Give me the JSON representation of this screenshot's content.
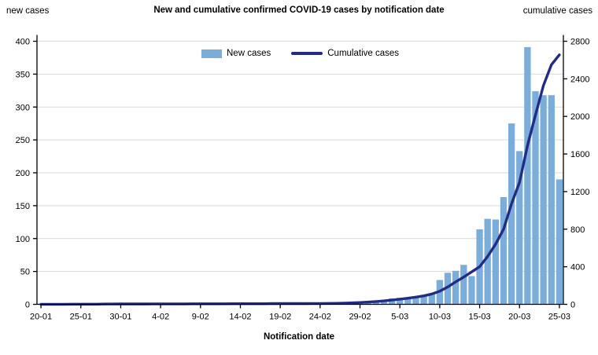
{
  "header": {
    "title": "New and cumulative confirmed COVID-19 cases by notification date",
    "left_axis_label": "new cases",
    "right_axis_label": "cumulative cases"
  },
  "legend": {
    "new_cases_label": "New cases",
    "cumulative_cases_label": "Cumulative cases"
  },
  "x_axis_title": "Notification date",
  "colors": {
    "bar": "#7badda",
    "line": "#232c85",
    "grid": "#d9d9d9",
    "axis": "#000000",
    "background": "#ffffff"
  },
  "chart_data": {
    "type": "bar",
    "title": "New and cumulative confirmed COVID-19 cases by notification date",
    "xlabel": "Notification date",
    "ylabel_left": "new cases",
    "ylabel_right": "cumulative cases",
    "left_axis": {
      "min": 0,
      "max": 400,
      "step": 50,
      "ticks": [
        0,
        50,
        100,
        150,
        200,
        250,
        300,
        350,
        400
      ]
    },
    "right_axis": {
      "min": 0,
      "max": 2800,
      "step": 400,
      "ticks": [
        0,
        400,
        800,
        1200,
        1600,
        2000,
        2400,
        2800
      ]
    },
    "x_tick_labels": [
      "20-01",
      "25-01",
      "30-01",
      "4-02",
      "9-02",
      "14-02",
      "19-02",
      "24-02",
      "29-02",
      "5-03",
      "10-03",
      "15-03",
      "20-03",
      "25-03"
    ],
    "x_tick_every": 5,
    "grid": "horizontal",
    "legend_position": "top-center",
    "categories": [
      "20-01",
      "21-01",
      "22-01",
      "23-01",
      "24-01",
      "25-01",
      "26-01",
      "27-01",
      "28-01",
      "29-01",
      "30-01",
      "31-01",
      "1-02",
      "2-02",
      "3-02",
      "4-02",
      "5-02",
      "6-02",
      "7-02",
      "8-02",
      "9-02",
      "10-02",
      "11-02",
      "12-02",
      "13-02",
      "14-02",
      "15-02",
      "16-02",
      "17-02",
      "18-02",
      "19-02",
      "20-02",
      "21-02",
      "22-02",
      "23-02",
      "24-02",
      "25-02",
      "26-02",
      "27-02",
      "28-02",
      "29-02",
      "1-03",
      "2-03",
      "3-03",
      "4-03",
      "5-03",
      "6-03",
      "7-03",
      "8-03",
      "9-03",
      "10-03",
      "11-03",
      "12-03",
      "13-03",
      "14-03",
      "15-03",
      "16-03",
      "17-03",
      "18-03",
      "19-03",
      "20-03",
      "21-03",
      "22-03",
      "23-03",
      "24-03",
      "25-03"
    ],
    "series": [
      {
        "name": "New cases",
        "axis": "left",
        "style": "bar",
        "values": [
          1,
          0,
          0,
          0,
          1,
          0,
          0,
          0,
          1,
          0,
          0,
          1,
          0,
          0,
          0,
          1,
          0,
          0,
          0,
          1,
          0,
          0,
          0,
          1,
          0,
          0,
          0,
          0,
          0,
          1,
          0,
          0,
          0,
          0,
          0,
          0,
          1,
          2,
          2,
          3,
          3,
          4,
          5,
          7,
          9,
          10,
          10,
          11,
          13,
          16,
          37,
          48,
          51,
          60,
          43,
          114,
          130,
          129,
          163,
          275,
          233,
          391,
          324,
          318,
          318,
          190
        ]
      },
      {
        "name": "Cumulative cases",
        "axis": "right",
        "style": "line",
        "values": [
          1,
          1,
          1,
          1,
          2,
          2,
          2,
          2,
          3,
          3,
          4,
          4,
          4,
          4,
          5,
          5,
          5,
          5,
          5,
          6,
          6,
          6,
          6,
          6,
          7,
          7,
          7,
          7,
          7,
          8,
          8,
          8,
          8,
          8,
          9,
          9,
          10,
          11,
          13,
          16,
          19,
          24,
          30,
          37,
          45,
          55,
          65,
          77,
          90,
          110,
          140,
          185,
          240,
          290,
          345,
          400,
          510,
          640,
          800,
          1070,
          1300,
          1690,
          2015,
          2330,
          2550,
          2655
        ]
      }
    ]
  }
}
